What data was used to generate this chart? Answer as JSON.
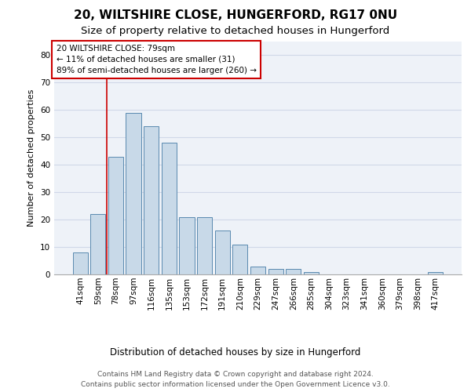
{
  "title1": "20, WILTSHIRE CLOSE, HUNGERFORD, RG17 0NU",
  "title2": "Size of property relative to detached houses in Hungerford",
  "xlabel": "Distribution of detached houses by size in Hungerford",
  "ylabel": "Number of detached properties",
  "categories": [
    "41sqm",
    "59sqm",
    "78sqm",
    "97sqm",
    "116sqm",
    "135sqm",
    "153sqm",
    "172sqm",
    "191sqm",
    "210sqm",
    "229sqm",
    "247sqm",
    "266sqm",
    "285sqm",
    "304sqm",
    "323sqm",
    "341sqm",
    "360sqm",
    "379sqm",
    "398sqm",
    "417sqm"
  ],
  "values": [
    8,
    22,
    43,
    59,
    54,
    48,
    21,
    21,
    16,
    11,
    3,
    2,
    2,
    1,
    0,
    0,
    0,
    0,
    0,
    0,
    1
  ],
  "bar_color": "#c8d9e8",
  "bar_edge_color": "#5a8ab0",
  "property_line_color": "#cc0000",
  "annotation_text": "20 WILTSHIRE CLOSE: 79sqm\n← 11% of detached houses are smaller (31)\n89% of semi-detached houses are larger (260) →",
  "annotation_box_color": "#cc0000",
  "ylim": [
    0,
    85
  ],
  "yticks": [
    0,
    10,
    20,
    30,
    40,
    50,
    60,
    70,
    80
  ],
  "grid_color": "#d0d8e8",
  "background_color": "#eef2f8",
  "footer_text": "Contains HM Land Registry data © Crown copyright and database right 2024.\nContains public sector information licensed under the Open Government Licence v3.0.",
  "title1_fontsize": 11,
  "title2_fontsize": 9.5,
  "xlabel_fontsize": 8.5,
  "ylabel_fontsize": 8,
  "tick_fontsize": 7.5,
  "footer_fontsize": 6.5,
  "ann_fontsize": 7.5
}
